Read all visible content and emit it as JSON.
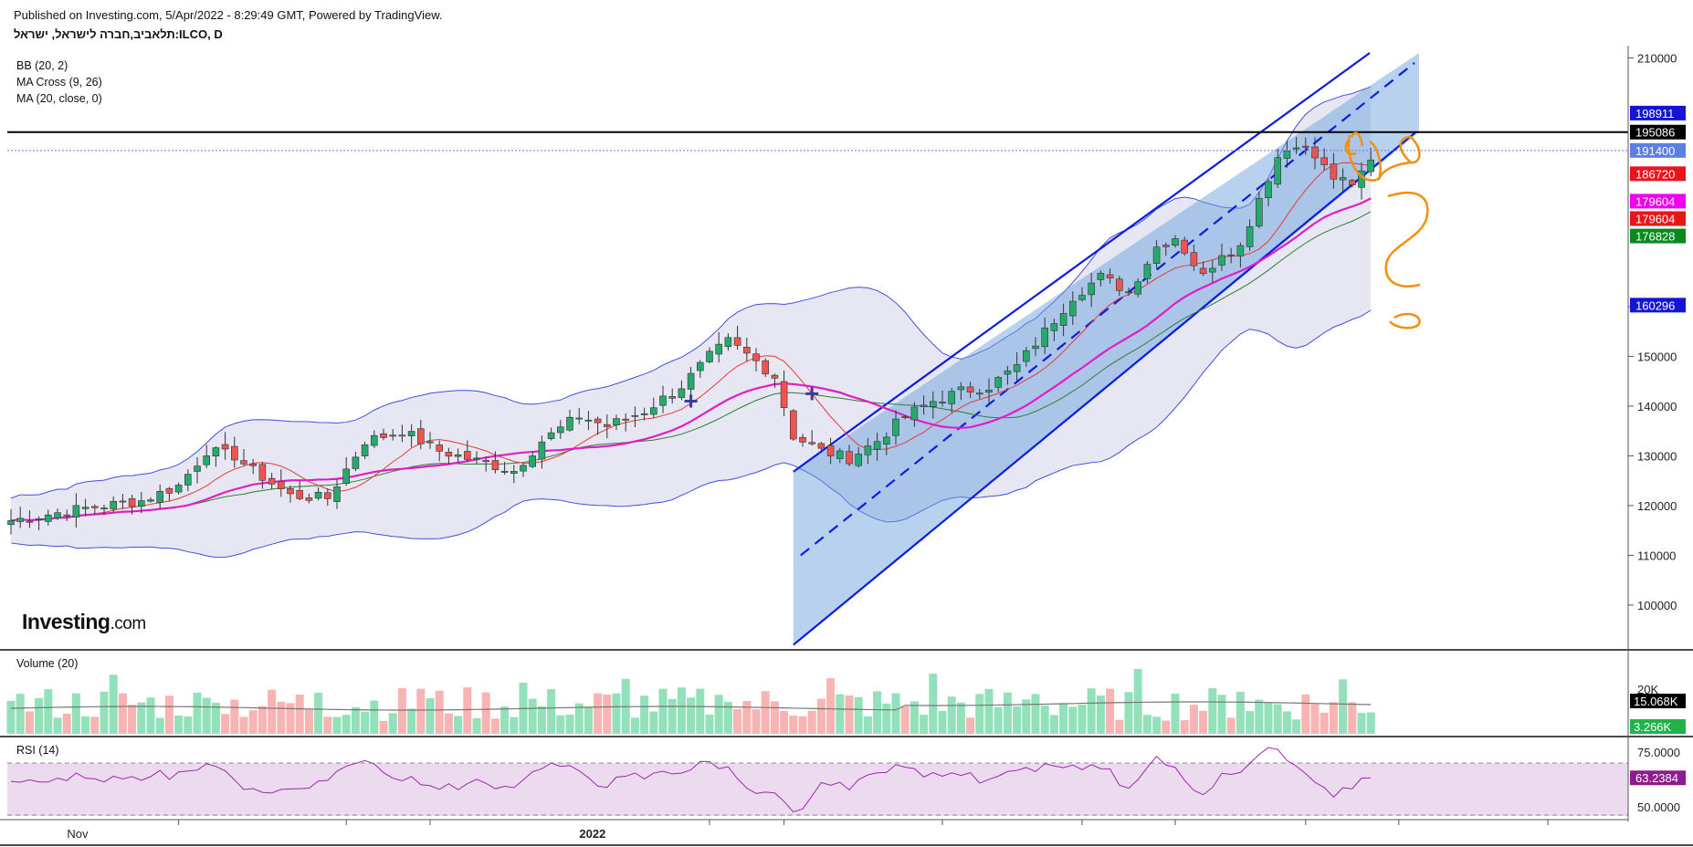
{
  "header": {
    "published": "Published on Investing.com, 5/Apr/2022 - 8:29:49 GMT, Powered by TradingView.",
    "symbol_title": "תלאביב,חברה לישראל, ישראל:ILCO, D"
  },
  "indicators": {
    "bb": "BB (20, 2)",
    "ma_cross": "MA Cross (9, 26)",
    "ma": "MA (20, close, 0)",
    "volume": "Volume (20)",
    "rsi": "RSI (14)"
  },
  "logo": {
    "text": "Investing",
    "suffix": ".com"
  },
  "colors": {
    "up": "#26a96c",
    "down": "#ef5350",
    "up_fill": "#2bb673",
    "bb_band": "#c9c9e6",
    "bb_line": "#3f4fe0",
    "ma_pink": "#e01ec8",
    "ma_red": "#e53935",
    "ma_green": "#2e7d32",
    "channel": "#0a1de0",
    "channel_fill": "#6fa3de",
    "rsi_line": "#9c27b0",
    "rsi_fill": "#ecdbef",
    "annotation": "#f0900e"
  },
  "chart_data": {
    "type": "candlestick",
    "price_axis": {
      "ylim": [
        91000,
        211000
      ],
      "ticks": [
        {
          "value": 210000,
          "label": "210000"
        },
        {
          "value": 160000,
          "label": "160000"
        },
        {
          "value": 150000,
          "label": "150000"
        },
        {
          "value": 140000,
          "label": "140000"
        },
        {
          "value": 130000,
          "label": "130000"
        },
        {
          "value": 120000,
          "label": "120000"
        },
        {
          "value": 110000,
          "label": "110000"
        },
        {
          "value": 100000,
          "label": "100000"
        }
      ]
    },
    "time_axis": {
      "labels": [
        {
          "text": "Nov",
          "index": 7
        },
        {
          "text": "2022",
          "index": 62
        }
      ],
      "bar_count": 147
    },
    "price_tags": [
      {
        "label": "198911",
        "value": 198911,
        "color": "#1414d8"
      },
      {
        "label": "195086",
        "value": 195086,
        "color": "#000000"
      },
      {
        "label": "191400",
        "value": 191400,
        "color": "#5b7fe6"
      },
      {
        "label": "186720",
        "value": 186720,
        "color": "#e8151b"
      },
      {
        "label": "179604",
        "value": 181200,
        "color": "#ee00ee"
      },
      {
        "label": "179604",
        "value": 177700,
        "color": "#e8151b"
      },
      {
        "label": "176828",
        "value": 174200,
        "color": "#0a8a1e"
      },
      {
        "label": "160296",
        "value": 160296,
        "color": "#1414d8"
      }
    ],
    "horizontal_line": 195086,
    "current_price_line": 191400,
    "volume_axis": {
      "tick_label": "20K",
      "tags": [
        {
          "label": "15.068K",
          "color": "#000000"
        },
        {
          "label": "3.266K",
          "color": "#21b24b"
        }
      ]
    },
    "rsi_axis": {
      "ticks": [
        {
          "value": 75,
          "label": "75.0000"
        },
        {
          "value": 50,
          "label": "50.0000"
        }
      ],
      "ylim": [
        45,
        80
      ],
      "band": [
        70,
        30
      ],
      "current_tag": {
        "label": "63.2384",
        "value": 63.2384,
        "color": "#8e1c8e"
      }
    },
    "legend": "top-left"
  }
}
